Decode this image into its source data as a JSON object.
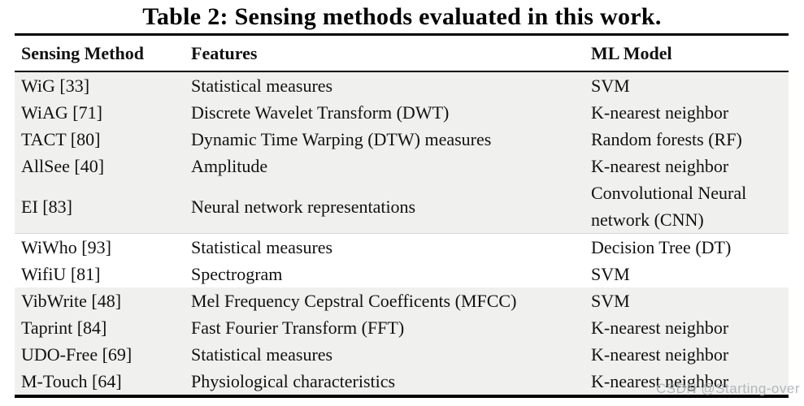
{
  "page": {
    "title": "Table 2: Sensing methods evaluated in this work.",
    "watermark": "CSDN @Starting-over"
  },
  "table": {
    "columns": [
      "Sensing Method",
      "Features",
      "ML Model"
    ],
    "rows": [
      {
        "method": "WiG [33]",
        "features": "Statistical measures",
        "model": "SVM",
        "shaded": true
      },
      {
        "method": "WiAG [71]",
        "features": "Discrete Wavelet Transform (DWT)",
        "model": "K-nearest neighbor",
        "shaded": true
      },
      {
        "method": "TACT [80]",
        "features": "Dynamic Time Warping (DTW) measures",
        "model": "Random forests (RF)",
        "shaded": true
      },
      {
        "method": "AllSee [40]",
        "features": "Amplitude",
        "model": "K-nearest neighbor",
        "shaded": true
      },
      {
        "method": "EI [83]",
        "features": "Neural network representations",
        "model": "Convolutional Neural network (CNN)",
        "shaded": true
      },
      {
        "method": "WiWho [93]",
        "features": "Statistical measures",
        "model": "Decision Tree (DT)",
        "shaded": false
      },
      {
        "method": "WifiU [81]",
        "features": "Spectrogram",
        "model": "SVM",
        "shaded": false
      },
      {
        "method": "VibWrite [48]",
        "features": "Mel Frequency Cepstral Coefficents (MFCC)",
        "model": "SVM",
        "shaded": true
      },
      {
        "method": "Taprint [84]",
        "features": "Fast Fourier Transform (FFT)",
        "model": "K-nearest neighbor",
        "shaded": true
      },
      {
        "method": "UDO-Free [69]",
        "features": "Statistical measures",
        "model": "K-nearest neighbor",
        "shaded": true
      },
      {
        "method": "M-Touch [64]",
        "features": "Physiological characteristics",
        "model": "K-nearest neighbor",
        "shaded": true
      }
    ]
  },
  "colors": {
    "shaded_row_bg": "#f0f0ee",
    "text": "#111111",
    "rule": "#000000",
    "watermark": "#a8adb2"
  }
}
